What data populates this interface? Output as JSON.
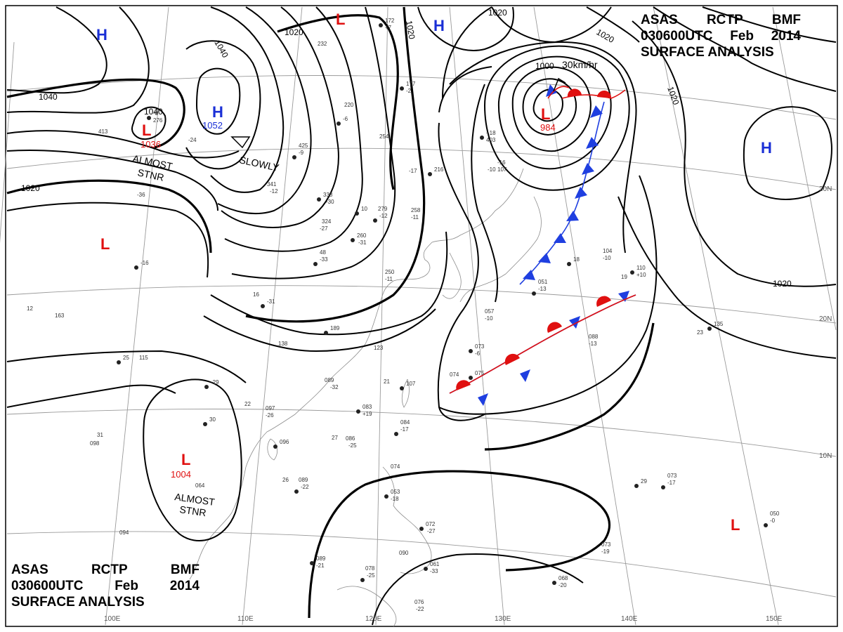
{
  "title": {
    "agency": [
      "ASAS",
      "RCTP",
      "BMF"
    ],
    "datetime": [
      "030600UTC",
      "Feb",
      "2014"
    ],
    "product": "SURFACE ANALYSIS"
  },
  "isobar_labels": [
    {
      "id": "iso-1040-w",
      "text": "1040"
    },
    {
      "id": "iso-1040-n",
      "text": "1040"
    },
    {
      "id": "iso-1040-c",
      "text": "1040"
    },
    {
      "id": "iso-1020-nw",
      "text": "1020"
    },
    {
      "id": "iso-1020-w",
      "text": "1020"
    },
    {
      "id": "iso-1020-n",
      "text": "1020"
    },
    {
      "id": "iso-1020-ne",
      "text": "1020"
    },
    {
      "id": "iso-1020-e",
      "text": "1020"
    },
    {
      "id": "iso-1020-se",
      "text": "1020"
    },
    {
      "id": "iso-1000",
      "text": "1000"
    }
  ],
  "pressure_centers": [
    {
      "id": "h-nw",
      "type": "H",
      "value": ""
    },
    {
      "id": "h-mongolia",
      "type": "H",
      "value": "1052"
    },
    {
      "id": "l-siberia",
      "type": "L",
      "value": "1036"
    },
    {
      "id": "l-north",
      "type": "L",
      "value": ""
    },
    {
      "id": "h-north",
      "type": "H",
      "value": ""
    },
    {
      "id": "l-kamchatka",
      "type": "L",
      "value": "984"
    },
    {
      "id": "h-pacific",
      "type": "H",
      "value": ""
    },
    {
      "id": "l-india",
      "type": "L",
      "value": ""
    },
    {
      "id": "l-indochina",
      "type": "L",
      "value": "1004"
    },
    {
      "id": "l-pacific-s",
      "type": "L",
      "value": ""
    }
  ],
  "motion_labels": [
    {
      "id": "motion-almost-stnr-1",
      "lines": [
        "ALMOST",
        "STNR"
      ]
    },
    {
      "id": "motion-slowly",
      "lines": [
        "SLOWLY"
      ]
    },
    {
      "id": "motion-30kmhr",
      "lines": [
        "30km/hr"
      ]
    },
    {
      "id": "motion-almost-stnr-2",
      "lines": [
        "ALMOST",
        "STNR"
      ]
    }
  ],
  "latitude_labels": [
    "30N",
    "20N",
    "10N"
  ],
  "longitude_labels": [
    "100E",
    "110E",
    "120E",
    "130E",
    "140E",
    "150E"
  ],
  "stations": [
    {
      "id": "s01",
      "text": "172"
    },
    {
      "id": "s02",
      "text": "+7"
    },
    {
      "id": "s03",
      "text": "232"
    },
    {
      "id": "s04",
      "text": "177"
    },
    {
      "id": "s05",
      "text": "-2"
    },
    {
      "id": "s06",
      "text": "220"
    },
    {
      "id": "s07",
      "text": "-6"
    },
    {
      "id": "s08",
      "text": "254"
    },
    {
      "id": "s09",
      "text": "425"
    },
    {
      "id": "s10",
      "text": "-9"
    },
    {
      "id": "s11",
      "text": "341"
    },
    {
      "id": "s12",
      "text": "-12"
    },
    {
      "id": "s13",
      "text": "338"
    },
    {
      "id": "s14",
      "text": "-30"
    },
    {
      "id": "s15",
      "text": "279"
    },
    {
      "id": "s16",
      "text": "-12"
    },
    {
      "id": "s17",
      "text": "258"
    },
    {
      "id": "s18",
      "text": "-11"
    },
    {
      "id": "s19",
      "text": "216"
    },
    {
      "id": "s20",
      "text": "324"
    },
    {
      "id": "s21",
      "text": "-27"
    },
    {
      "id": "s22",
      "text": "260"
    },
    {
      "id": "s23",
      "text": "-31"
    },
    {
      "id": "s24",
      "text": "48"
    },
    {
      "id": "s25",
      "text": "-33"
    },
    {
      "id": "s26",
      "text": "250"
    },
    {
      "id": "s27",
      "text": "-11"
    },
    {
      "id": "s28",
      "text": "189"
    },
    {
      "id": "s29",
      "text": "123"
    },
    {
      "id": "s30",
      "text": "138"
    },
    {
      "id": "s31",
      "text": "-31"
    },
    {
      "id": "s32",
      "text": "163"
    },
    {
      "id": "s33",
      "text": "115"
    },
    {
      "id": "s34",
      "text": "-29"
    },
    {
      "id": "s35",
      "text": "089"
    },
    {
      "id": "s36",
      "text": "-32"
    },
    {
      "id": "s37",
      "text": "107"
    },
    {
      "id": "s38",
      "text": "097"
    },
    {
      "id": "s39",
      "text": "-26"
    },
    {
      "id": "s40",
      "text": "083"
    },
    {
      "id": "s41",
      "text": "+19"
    },
    {
      "id": "s42",
      "text": "084"
    },
    {
      "id": "s43",
      "text": "-17"
    },
    {
      "id": "s44",
      "text": "086"
    },
    {
      "id": "s45",
      "text": "-25"
    },
    {
      "id": "s46",
      "text": "096"
    },
    {
      "id": "s47",
      "text": "098"
    },
    {
      "id": "s48",
      "text": "089"
    },
    {
      "id": "s49",
      "text": "-22"
    },
    {
      "id": "s50",
      "text": "064"
    },
    {
      "id": "s51",
      "text": "094"
    },
    {
      "id": "s52",
      "text": "089"
    },
    {
      "id": "s53",
      "text": "-21"
    },
    {
      "id": "s54",
      "text": "078"
    },
    {
      "id": "s55",
      "text": "-25"
    },
    {
      "id": "s56",
      "text": "076"
    },
    {
      "id": "s57",
      "text": "-22"
    },
    {
      "id": "s58",
      "text": "061"
    },
    {
      "id": "s59",
      "text": "-33"
    },
    {
      "id": "s60",
      "text": "090"
    },
    {
      "id": "s61",
      "text": "072"
    },
    {
      "id": "s62",
      "text": "-27"
    },
    {
      "id": "s63",
      "text": "074"
    },
    {
      "id": "s64",
      "text": "053"
    },
    {
      "id": "s65",
      "text": "-18"
    },
    {
      "id": "s66",
      "text": "073"
    },
    {
      "id": "s67",
      "text": "-17"
    },
    {
      "id": "s68",
      "text": "073"
    },
    {
      "id": "s69",
      "text": "-19"
    },
    {
      "id": "s70",
      "text": "068"
    },
    {
      "id": "s71",
      "text": "-20"
    },
    {
      "id": "s72",
      "text": "050"
    },
    {
      "id": "s73",
      "text": "-0"
    },
    {
      "id": "s74",
      "text": "088"
    },
    {
      "id": "s75",
      "text": "-13"
    },
    {
      "id": "s76",
      "text": "135"
    },
    {
      "id": "s77",
      "text": "104"
    },
    {
      "id": "s78",
      "text": "-10"
    },
    {
      "id": "s79",
      "text": "110"
    },
    {
      "id": "s80",
      "text": "+10"
    },
    {
      "id": "s81",
      "text": "051"
    },
    {
      "id": "s82",
      "text": "-13"
    },
    {
      "id": "s83",
      "text": "057"
    },
    {
      "id": "s84",
      "text": "-10"
    },
    {
      "id": "s85",
      "text": "073"
    },
    {
      "id": "s86",
      "text": "-6"
    },
    {
      "id": "s87",
      "text": "074"
    },
    {
      "id": "s88",
      "text": "075"
    },
    {
      "id": "s89",
      "text": "-16"
    },
    {
      "id": "s90",
      "text": "107"
    },
    {
      "id": "s91",
      "text": "+18"
    },
    {
      "id": "s92",
      "text": "403"
    },
    {
      "id": "s93",
      "text": "413"
    },
    {
      "id": "s94",
      "text": "-8"
    },
    {
      "id": "s95",
      "text": "276"
    },
    {
      "id": "s96",
      "text": "-36"
    },
    {
      "id": "s97",
      "text": "-16"
    },
    {
      "id": "s98",
      "text": "-24"
    },
    {
      "id": "s99",
      "text": "22"
    },
    {
      "id": "s100",
      "text": "30"
    },
    {
      "id": "s101",
      "text": "26"
    },
    {
      "id": "s102",
      "text": "31"
    },
    {
      "id": "s103",
      "text": "25"
    },
    {
      "id": "s104",
      "text": "12"
    },
    {
      "id": "s105",
      "text": "27"
    },
    {
      "id": "s106",
      "text": "29"
    },
    {
      "id": "s107",
      "text": "23"
    },
    {
      "id": "s108",
      "text": "21"
    },
    {
      "id": "s109",
      "text": "18"
    },
    {
      "id": "s110",
      "text": "16"
    },
    {
      "id": "s111",
      "text": "19"
    },
    {
      "id": "s112",
      "text": "10"
    },
    {
      "id": "s113",
      "text": "-17"
    },
    {
      "id": "s114",
      "text": "-10"
    }
  ]
}
